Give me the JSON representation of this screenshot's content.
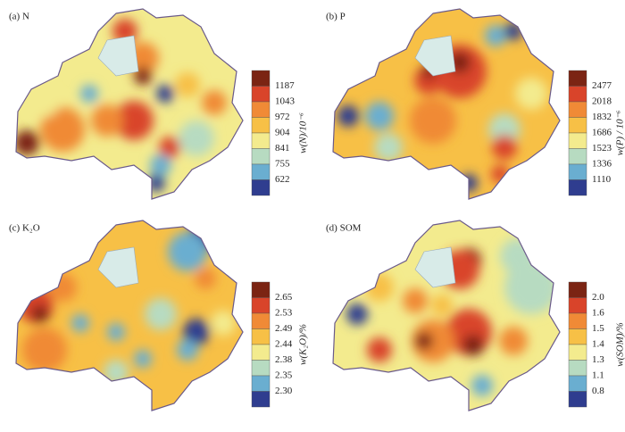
{
  "legend_colors": [
    "#7b2413",
    "#d9442a",
    "#f08a36",
    "#f7c046",
    "#f3eb8e",
    "#b7dbc1",
    "#6aaed0",
    "#2f3d8f"
  ],
  "panels": [
    {
      "label": "(a) N",
      "legend_title": "w(N)/10⁻⁶",
      "legend_ticks": [
        "1187",
        "1043",
        "972",
        "904",
        "841",
        "755",
        "622"
      ]
    },
    {
      "label": "(b) P",
      "legend_title": "w(P) / 10⁻⁶",
      "legend_ticks": [
        "2477",
        "2018",
        "1832",
        "1686",
        "1523",
        "1336",
        "1110"
      ]
    },
    {
      "label": "(c) K₂O",
      "legend_title": "w(K₂O)/%",
      "legend_ticks": [
        "2.65",
        "2.53",
        "2.49",
        "2.44",
        "2.38",
        "2.35",
        "2.30"
      ]
    },
    {
      "label": "(d) SOM",
      "legend_title": "w(SOM)/%",
      "legend_ticks": [
        "2.0",
        "1.6",
        "1.5",
        "1.4",
        "1.3",
        "1.1",
        "0.8"
      ]
    }
  ]
}
